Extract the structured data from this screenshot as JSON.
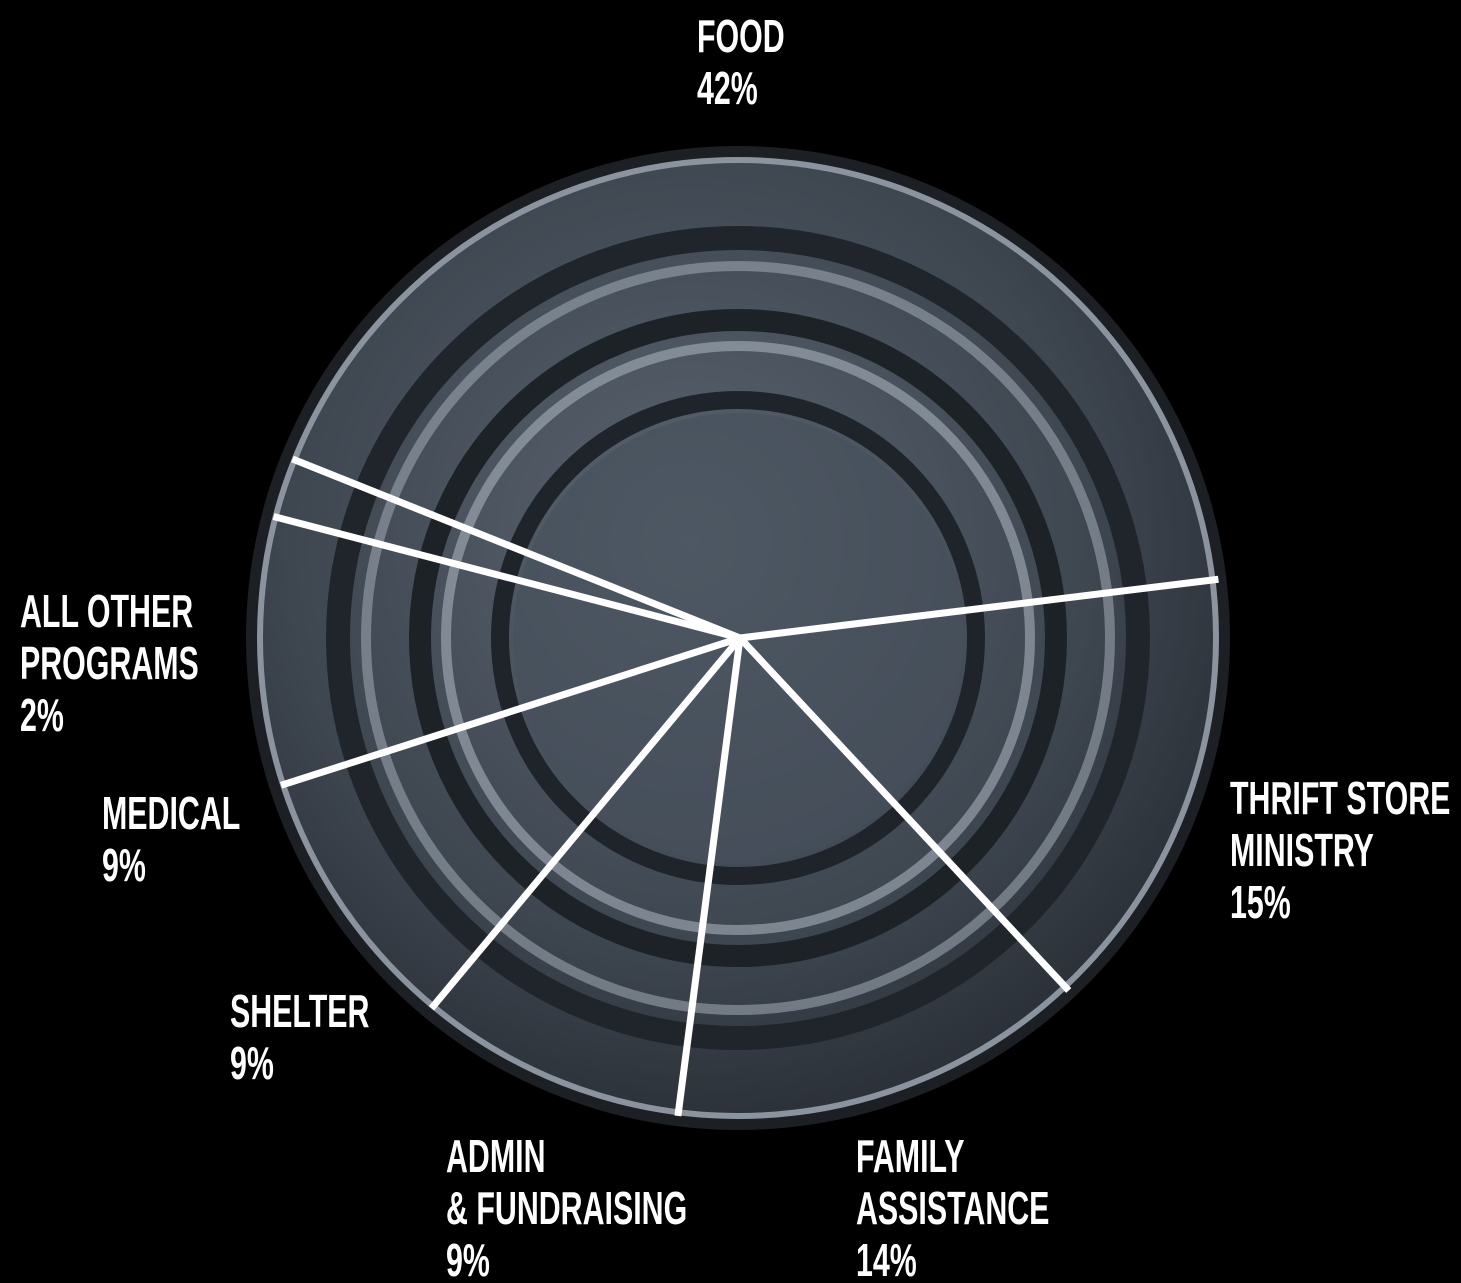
{
  "chart_data": {
    "type": "pie",
    "categories": [
      "FOOD",
      "THRIFT STORE\nMINISTRY",
      "FAMILY\nASSISTANCE",
      "ADMIN\n& FUNDRAISING",
      "SHELTER",
      "MEDICAL",
      "ALL OTHER\nPROGRAMS"
    ],
    "values": [
      42,
      15,
      14,
      9,
      9,
      9,
      2
    ],
    "value_labels": [
      "42%",
      "15%",
      "14%",
      "9%",
      "9%",
      "9%",
      "2%"
    ],
    "color": "#ffffff"
  }
}
